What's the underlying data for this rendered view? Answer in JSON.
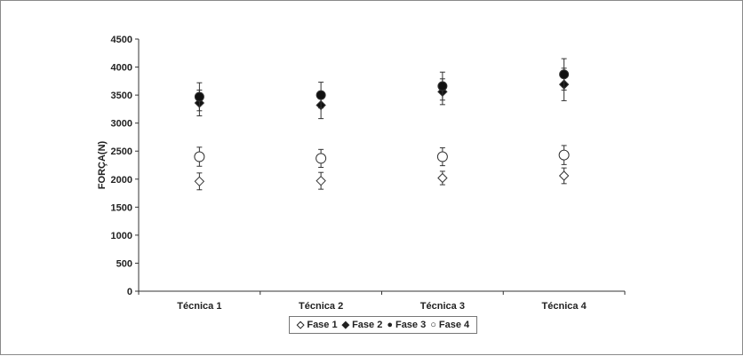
{
  "chart_data": {
    "type": "scatter",
    "title": "",
    "xlabel": "",
    "ylabel": "FORÇA(N)",
    "ylim": [
      0,
      4500
    ],
    "yticks": [
      0,
      500,
      1000,
      1500,
      2000,
      2500,
      3000,
      3500,
      4000,
      4500
    ],
    "categories": [
      "Técnica 1",
      "Técnica 2",
      "Técnica 3",
      "Técnica 4"
    ],
    "grid": false,
    "legend_position": "bottom",
    "series": [
      {
        "name": "Fase 1",
        "marker": "diamond-open",
        "values": [
          1960,
          1970,
          2020,
          2060
        ],
        "error": [
          150,
          150,
          120,
          140
        ]
      },
      {
        "name": "Fase 2",
        "marker": "diamond-filled",
        "values": [
          3360,
          3320,
          3560,
          3690
        ],
        "error": [
          230,
          240,
          230,
          290
        ]
      },
      {
        "name": "Fase 3",
        "marker": "circle-filled",
        "values": [
          3470,
          3500,
          3660,
          3870
        ],
        "error": [
          250,
          230,
          250,
          280
        ]
      },
      {
        "name": "Fase 4",
        "marker": "circle-open",
        "values": [
          2400,
          2370,
          2400,
          2430
        ],
        "error": [
          170,
          160,
          160,
          170
        ]
      }
    ]
  }
}
